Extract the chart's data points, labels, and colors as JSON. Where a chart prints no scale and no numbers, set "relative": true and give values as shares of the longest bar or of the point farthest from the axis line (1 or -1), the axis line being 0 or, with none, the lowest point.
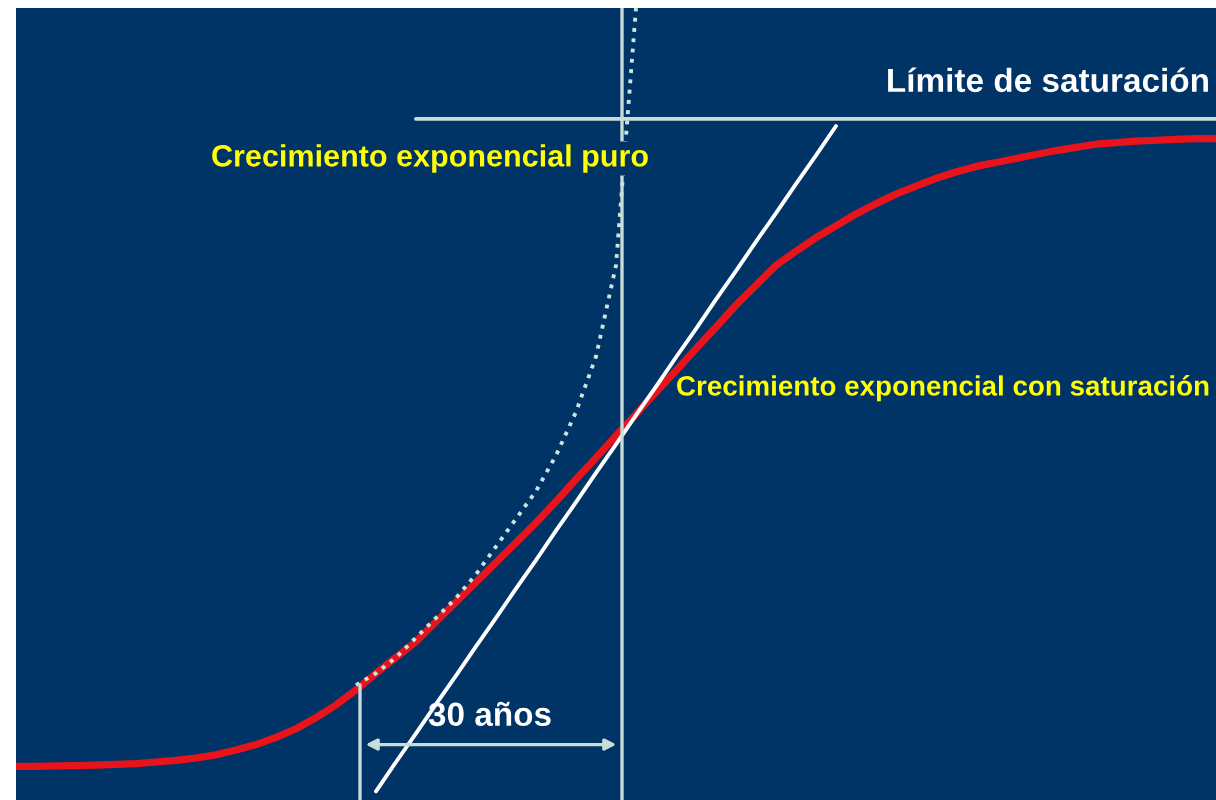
{
  "chart_data": {
    "type": "line",
    "relative": true,
    "categories": [
      null,
      null,
      null,
      null,
      null,
      null,
      null,
      null,
      null,
      null,
      null,
      null,
      null,
      null,
      null,
      null,
      null,
      null,
      null,
      null,
      null,
      null,
      null,
      null,
      null,
      null,
      null,
      null,
      null,
      null,
      null,
      null,
      null,
      null,
      null,
      null,
      null,
      null,
      null,
      null,
      null,
      null,
      null,
      null,
      null,
      null,
      null,
      null,
      null,
      null,
      null,
      null,
      null,
      null,
      null,
      null,
      null,
      null,
      null,
      null,
      null
    ],
    "series": [
      {
        "color": "#e8141c",
        "line_style": "solid",
        "values": [
          0.0425,
          0.0425,
          0.043,
          0.0435,
          0.044,
          0.045,
          0.046,
          0.048,
          0.05,
          0.053,
          0.057,
          0.063,
          0.07,
          0.079,
          0.09,
          0.104,
          0.12,
          0.139,
          0.16,
          0.18,
          0.2,
          0.225,
          0.25,
          0.275,
          0.3,
          0.325,
          0.35,
          0.377,
          0.405,
          0.432,
          0.46,
          0.487,
          0.515,
          0.542,
          0.57,
          0.597,
          0.625,
          0.65,
          0.675,
          0.693,
          0.71,
          0.725,
          0.74,
          0.753,
          0.765,
          0.775,
          0.785,
          0.793,
          0.8,
          0.805,
          0.81,
          0.815,
          0.82,
          0.824,
          0.828,
          0.83,
          0.832,
          0.833,
          0.834,
          0.835,
          0.835
        ]
      },
      {
        "color": "#c8e6dc",
        "line_style": "dotted",
        "values": [
          null,
          null,
          null,
          null,
          null,
          null,
          null,
          null,
          null,
          null,
          null,
          null,
          null,
          null,
          null,
          null,
          null,
          0.145,
          0.16,
          0.18,
          0.205,
          0.23,
          0.255,
          0.285,
          0.32,
          0.355,
          0.39,
          0.435,
          0.49,
          0.56,
          0.675,
          1.0,
          null,
          null,
          null,
          null,
          null,
          null,
          null,
          null,
          null,
          null,
          null,
          null,
          null,
          null,
          null,
          null,
          null,
          null,
          null,
          null,
          null,
          null,
          null,
          null,
          null,
          null,
          null,
          null,
          null
        ]
      },
      {
        "color": "#ffffff",
        "line_style": "solid",
        "values": [
          null,
          null,
          null,
          null,
          null,
          null,
          null,
          null,
          null,
          null,
          null,
          null,
          null,
          null,
          null,
          null,
          null,
          null,
          0.011,
          0.048,
          0.084,
          0.121,
          0.157,
          0.194,
          0.23,
          0.267,
          0.303,
          0.34,
          0.376,
          0.413,
          0.449,
          0.486,
          0.522,
          0.559,
          0.595,
          0.632,
          0.668,
          0.705,
          0.741,
          0.778,
          0.814,
          0.851,
          null,
          null,
          null,
          null,
          null,
          null,
          null,
          null,
          null,
          null,
          null,
          null,
          null,
          null,
          null,
          null,
          null,
          null,
          null
        ]
      },
      {
        "color": "#c8dcd8",
        "line_style": "solid",
        "values": [
          null,
          null,
          null,
          null,
          null,
          null,
          null,
          null,
          null,
          null,
          null,
          null,
          null,
          null,
          null,
          null,
          null,
          null,
          null,
          null,
          0.86,
          0.86,
          0.86,
          0.86,
          0.86,
          0.86,
          0.86,
          0.86,
          0.86,
          0.86,
          0.86,
          0.86,
          0.86,
          0.86,
          0.86,
          0.86,
          0.86,
          0.86,
          0.86,
          0.86,
          0.86,
          0.86,
          0.86,
          0.86,
          0.86,
          0.86,
          0.86,
          0.86,
          0.86,
          0.86,
          0.86,
          0.86,
          0.86,
          0.86,
          0.86,
          0.86,
          0.86,
          0.86,
          0.86,
          0.86,
          0.86
        ]
      }
    ],
    "annotations": [
      "Crecimiento exponencial puro",
      "Crecimiento exponencial con saturación",
      "Límite de saturación",
      "30 años"
    ]
  }
}
